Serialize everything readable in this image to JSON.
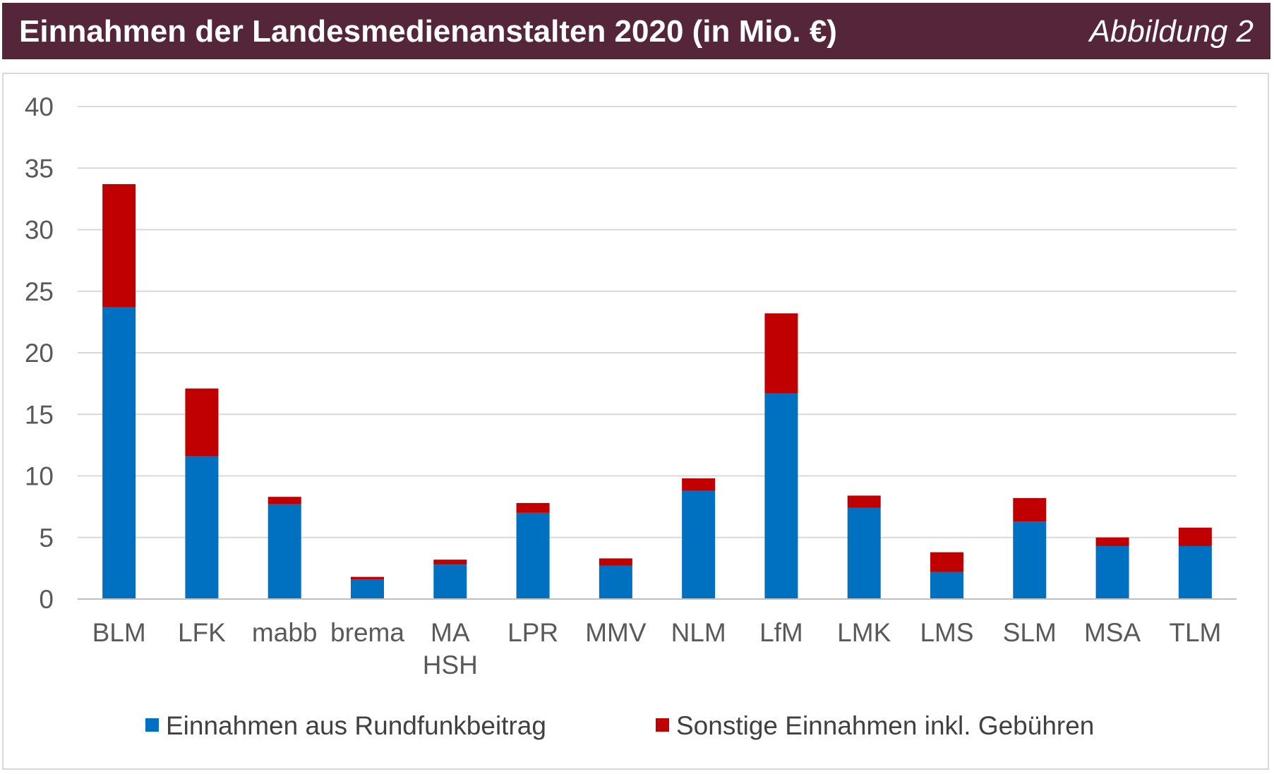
{
  "header": {
    "title": "Einnahmen der Landesmedienanstalten 2020 (in Mio. €)",
    "figure_label": "Abbildung 2",
    "background_color": "#55253a"
  },
  "chart_data": {
    "type": "bar",
    "stacked": true,
    "title": "Einnahmen der Landesmedienanstalten 2020 (in Mio. €)",
    "xlabel": "",
    "ylabel": "",
    "ylim": [
      0,
      40
    ],
    "yticks": [
      0,
      5,
      10,
      15,
      20,
      25,
      30,
      35,
      40
    ],
    "grid": true,
    "legend_position": "bottom",
    "categories": [
      [
        "BLM"
      ],
      [
        "LFK"
      ],
      [
        "mabb"
      ],
      [
        "brema"
      ],
      [
        "MA",
        "HSH"
      ],
      [
        "LPR"
      ],
      [
        "MMV"
      ],
      [
        "NLM"
      ],
      [
        "LfM"
      ],
      [
        "LMK"
      ],
      [
        "LMS"
      ],
      [
        "SLM"
      ],
      [
        "MSA"
      ],
      [
        "TLM"
      ]
    ],
    "series": [
      {
        "name": "Einnahmen aus Rundfunkbeitrag",
        "color": "#0070c0",
        "values": [
          23.7,
          11.6,
          7.7,
          1.6,
          2.8,
          7.0,
          2.7,
          8.8,
          16.7,
          7.4,
          2.2,
          6.3,
          4.3,
          4.3
        ]
      },
      {
        "name": "Sonstige Einnahmen inkl. Gebühren",
        "color": "#c00000",
        "values": [
          10.0,
          5.5,
          0.6,
          0.2,
          0.4,
          0.8,
          0.6,
          1.0,
          6.5,
          1.0,
          1.6,
          1.9,
          0.7,
          1.5
        ]
      }
    ]
  }
}
